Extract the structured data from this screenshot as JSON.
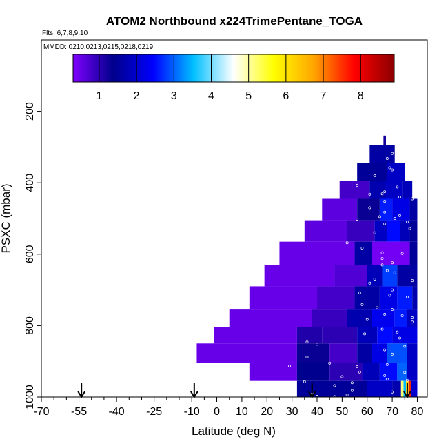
{
  "chart_data": {
    "type": "heatmap",
    "title": "ATOM2 Northbound x224TrimePentane_TOGA",
    "flights_label": "Flts: 6,7,8,9,10",
    "dates_label": "MMDD: 0210,0213,0215,0218,0219",
    "xlabel": "Latitude (deg N)",
    "ylabel": "PSXC (mbar)",
    "xlim": [
      -70,
      84
    ],
    "ylim": [
      1000,
      0
    ],
    "x_ticks": [
      -70,
      -55,
      -40,
      -25,
      -10,
      0,
      10,
      20,
      30,
      40,
      50,
      60,
      70,
      80
    ],
    "y_ticks": [
      200,
      400,
      600,
      800,
      1000
    ],
    "colorbar": {
      "min": 0.3,
      "max": 8.9,
      "ticks": [
        1,
        2,
        3,
        4,
        5,
        6,
        7,
        8
      ],
      "colors": [
        "#7F00FF",
        "#00008B",
        "#0000FF",
        "#00BFFF",
        "#FFFFFF",
        "#FFFF00",
        "#FFA500",
        "#FF0000",
        "#8B0000"
      ]
    },
    "arrows_lat": [
      -54,
      -9,
      38,
      76
    ],
    "bands": [
      {
        "p_top": 268,
        "p_bot": 295,
        "segments": [
          [
            66.5,
            67.5,
            1.2
          ]
        ]
      },
      {
        "p_top": 295,
        "p_bot": 345,
        "segments": [
          [
            61,
            71,
            1.6
          ]
        ]
      },
      {
        "p_top": 345,
        "p_bot": 395,
        "segments": [
          [
            56,
            68,
            1.5
          ],
          [
            68,
            75,
            1.9
          ]
        ]
      },
      {
        "p_top": 395,
        "p_bot": 445,
        "segments": [
          [
            49,
            61,
            0.8
          ],
          [
            61,
            67,
            1.7
          ],
          [
            67,
            74,
            1.9
          ],
          [
            74,
            78,
            1.8
          ]
        ]
      },
      {
        "p_top": 445,
        "p_bot": 505,
        "segments": [
          [
            42,
            56,
            0.6
          ],
          [
            56,
            65,
            1.3
          ],
          [
            65,
            70,
            2.6
          ],
          [
            70,
            77,
            2.2
          ],
          [
            77,
            80,
            1.6
          ]
        ]
      },
      {
        "p_top": 505,
        "p_bot": 565,
        "segments": [
          [
            35,
            52,
            0.6
          ],
          [
            52,
            63,
            0.9
          ],
          [
            63,
            68,
            1.9
          ],
          [
            68,
            73,
            2.5
          ],
          [
            73,
            77,
            1.8
          ],
          [
            77,
            80,
            1.5
          ]
        ]
      },
      {
        "p_top": 565,
        "p_bot": 630,
        "segments": [
          [
            25,
            55,
            0.5
          ],
          [
            55,
            62,
            1.6
          ],
          [
            62,
            77,
            0.4
          ],
          [
            77,
            80,
            1.5
          ]
        ]
      },
      {
        "p_top": 630,
        "p_bot": 690,
        "segments": [
          [
            19,
            47,
            0.5
          ],
          [
            47,
            60,
            0.7
          ],
          [
            60,
            66,
            1.8
          ],
          [
            66,
            72,
            2.8
          ],
          [
            72,
            80,
            1.6
          ]
        ]
      },
      {
        "p_top": 690,
        "p_bot": 755,
        "segments": [
          [
            13,
            40,
            0.5
          ],
          [
            40,
            55,
            0.8
          ],
          [
            55,
            65,
            1.6
          ],
          [
            65,
            72,
            2.2
          ],
          [
            72,
            78,
            2.6
          ],
          [
            78,
            80,
            1.7
          ]
        ]
      },
      {
        "p_top": 755,
        "p_bot": 805,
        "segments": [
          [
            5,
            38,
            0.5
          ],
          [
            38,
            52,
            0.9
          ],
          [
            52,
            62,
            1.7
          ],
          [
            62,
            71,
            2.3
          ],
          [
            71,
            76,
            2.6
          ],
          [
            76,
            80,
            1.9
          ]
        ]
      },
      {
        "p_top": 805,
        "p_bot": 850,
        "segments": [
          [
            -1,
            32,
            0.5
          ],
          [
            32,
            42,
            1.1
          ],
          [
            42,
            56,
            1.0
          ],
          [
            56,
            64,
            1.8
          ],
          [
            64,
            70,
            2.5
          ],
          [
            70,
            80,
            2.2
          ]
        ]
      },
      {
        "p_top": 850,
        "p_bot": 905,
        "segments": [
          [
            -8,
            32,
            0.5
          ],
          [
            32,
            45,
            1.3
          ],
          [
            45,
            56,
            0.8
          ],
          [
            56,
            62,
            1.6
          ],
          [
            62,
            68,
            2.2
          ],
          [
            68,
            76,
            2.9
          ],
          [
            76,
            80,
            1.9
          ]
        ]
      },
      {
        "p_top": 905,
        "p_bot": 955,
        "segments": [
          [
            13,
            32,
            0.5
          ],
          [
            32,
            45,
            1.4
          ],
          [
            45,
            58,
            1.0
          ],
          [
            58,
            65,
            1.8
          ],
          [
            65,
            72,
            2.5
          ],
          [
            72,
            76,
            3.0
          ],
          [
            76,
            80,
            1.9
          ]
        ]
      },
      {
        "p_top": 955,
        "p_bot": 1000,
        "segments": [
          [
            32,
            60,
            1.5
          ],
          [
            60,
            70,
            1.9
          ],
          [
            70,
            73.5,
            1.7
          ],
          [
            73.5,
            74.5,
            5.2
          ],
          [
            74.5,
            75.5,
            3.5
          ],
          [
            75.5,
            76.5,
            6.2
          ],
          [
            76.5,
            77.5,
            7.6
          ],
          [
            77.5,
            80,
            2.0
          ]
        ]
      }
    ],
    "obs_points": [
      [
        68,
        282
      ],
      [
        70,
        318
      ],
      [
        68,
        332
      ],
      [
        69,
        358
      ],
      [
        70,
        364
      ],
      [
        63,
        380
      ],
      [
        56,
        407
      ],
      [
        72,
        412
      ],
      [
        67,
        425
      ],
      [
        66,
        431
      ],
      [
        61,
        432
      ],
      [
        73,
        440
      ],
      [
        78,
        445
      ],
      [
        67,
        452
      ],
      [
        61,
        470
      ],
      [
        67,
        482
      ],
      [
        73,
        492
      ],
      [
        65,
        495
      ],
      [
        71,
        500
      ],
      [
        56,
        502
      ],
      [
        76,
        510
      ],
      [
        67,
        515
      ],
      [
        77,
        528
      ],
      [
        63,
        540
      ],
      [
        52,
        568
      ],
      [
        58,
        583
      ],
      [
        66,
        596
      ],
      [
        74,
        598
      ],
      [
        66,
        612
      ],
      [
        70,
        624
      ],
      [
        66,
        630
      ],
      [
        68,
        646
      ],
      [
        71,
        652
      ],
      [
        63,
        670
      ],
      [
        78,
        674
      ],
      [
        61,
        681
      ],
      [
        70,
        700
      ],
      [
        57,
        708
      ],
      [
        69,
        715
      ],
      [
        76,
        720
      ],
      [
        58,
        741
      ],
      [
        64,
        750
      ],
      [
        70,
        755
      ],
      [
        67,
        768
      ],
      [
        74,
        772
      ],
      [
        78,
        778
      ],
      [
        60,
        783
      ],
      [
        78,
        790
      ],
      [
        66,
        810
      ],
      [
        72,
        818
      ],
      [
        59,
        823
      ],
      [
        73,
        835
      ],
      [
        36,
        846
      ],
      [
        40,
        852
      ],
      [
        75,
        858
      ],
      [
        67,
        868
      ],
      [
        70,
        880
      ],
      [
        36,
        888
      ],
      [
        45,
        905
      ],
      [
        68,
        909
      ],
      [
        29,
        913
      ],
      [
        56,
        915
      ],
      [
        57,
        930
      ],
      [
        75,
        931
      ],
      [
        67,
        940
      ],
      [
        50,
        943
      ],
      [
        68,
        950
      ],
      [
        76,
        953
      ],
      [
        35,
        957
      ],
      [
        54,
        960
      ],
      [
        47,
        968
      ],
      [
        54,
        982
      ],
      [
        70,
        986
      ],
      [
        38,
        992
      ],
      [
        52,
        994
      ],
      [
        40,
        998
      ],
      [
        47,
        999
      ]
    ]
  }
}
